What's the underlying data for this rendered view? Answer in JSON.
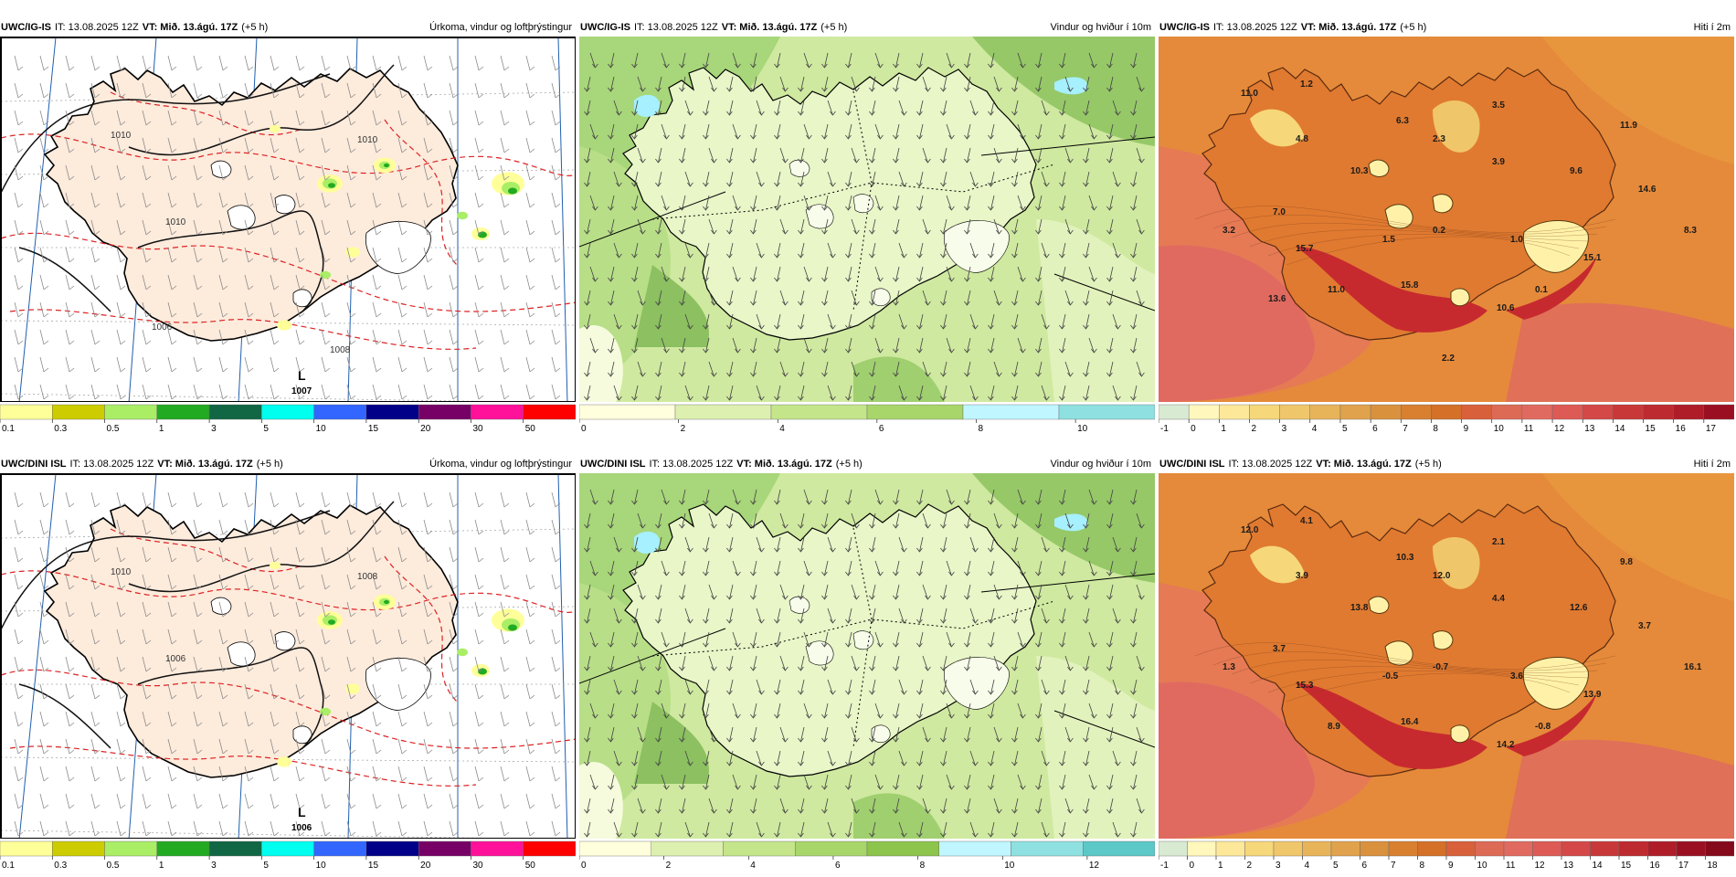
{
  "panels": [
    {
      "id": "p1",
      "model": "UWC/IG-IS",
      "it": "IT: 13.08.2025 12Z",
      "vt": "VT: Mið. 13.ágú. 17Z",
      "lead": "(+5 h)",
      "variable": "Úrkoma, vindur og loftþrýstingur",
      "kind": "precip",
      "pressure_labels": [
        "1010",
        "1010",
        "1010",
        "1008",
        "1006"
      ],
      "low": {
        "letter": "L",
        "value": "1007"
      },
      "temp_labels": [],
      "colorbar": {
        "ticks": [
          "0.1",
          "0.3",
          "0.5",
          "1",
          "3",
          "5",
          "10",
          "15",
          "20",
          "30",
          "50"
        ],
        "colors": [
          "#ffff99",
          "#cccc00",
          "#aaee66",
          "#22aa22",
          "#116644",
          "#00ffee",
          "#3366ff",
          "#000088",
          "#770066",
          "#ff1199",
          "#ff0000"
        ]
      }
    },
    {
      "id": "p2",
      "model": "UWC/IG-IS",
      "it": "IT: 13.08.2025 12Z",
      "vt": "VT: Mið. 13.ágú. 17Z",
      "lead": "(+5 h)",
      "variable": "Vindur og hviður í 10m",
      "kind": "wind",
      "temp_labels": [],
      "colorbar": {
        "ticks": [
          "0",
          "2",
          "4",
          "6",
          "8",
          "10"
        ],
        "colors": [
          "#ffffdd",
          "#ddf0b0",
          "#c4e58a",
          "#a8d66a",
          "#bff6ff",
          "#8fe0e0"
        ]
      }
    },
    {
      "id": "p3",
      "model": "UWC/IG-IS",
      "it": "IT: 13.08.2025 12Z",
      "vt": "VT: Mið. 13.ágú. 17Z",
      "lead": "(+5 h)",
      "variable": "Hiti í 2m",
      "kind": "temp",
      "temp_labels": [
        "11.0",
        "1.2",
        "4.8",
        "6.3",
        "2.3",
        "3.5",
        "3.9",
        "11.9",
        "10.3",
        "9.6",
        "14.6",
        "7.0",
        "3.2",
        "1.5",
        "0.2",
        "1.0",
        "8.3",
        "15.7",
        "15.1",
        "11.0",
        "15.8",
        "0.1",
        "10.6",
        "13.6",
        "2.2"
      ],
      "colorbar": {
        "ticks": [
          "-1",
          "0",
          "1",
          "2",
          "3",
          "4",
          "5",
          "6",
          "7",
          "8",
          "9",
          "10",
          "11",
          "12",
          "13",
          "14",
          "15",
          "16",
          "17"
        ],
        "colors": [
          "#d9ead3",
          "#fff7bc",
          "#fde89a",
          "#f6d77a",
          "#f0c66a",
          "#e8b45a",
          "#e0a24c",
          "#d9913e",
          "#d88030",
          "#d47028",
          "#d8603a",
          "#dd6a55",
          "#e06a60",
          "#dd5a55",
          "#d44848",
          "#c93838",
          "#bd2a30",
          "#ae1d28",
          "#9a1022"
        ]
      }
    },
    {
      "id": "p4",
      "model": "UWC/DINI ISL",
      "it": "IT: 13.08.2025 12Z",
      "vt": "VT: Mið. 13.ágú. 17Z",
      "lead": "(+5 h)",
      "variable": "Úrkoma, vindur og loftþrýstingur",
      "kind": "precip",
      "pressure_labels": [
        "1010",
        "1008",
        "1006"
      ],
      "low": {
        "letter": "L",
        "value": "1006"
      },
      "temp_labels": [],
      "colorbar": {
        "ticks": [
          "0.1",
          "0.3",
          "0.5",
          "1",
          "3",
          "5",
          "10",
          "15",
          "20",
          "30",
          "50"
        ],
        "colors": [
          "#ffff99",
          "#cccc00",
          "#aaee66",
          "#22aa22",
          "#116644",
          "#00ffee",
          "#3366ff",
          "#000088",
          "#770066",
          "#ff1199",
          "#ff0000"
        ]
      }
    },
    {
      "id": "p5",
      "model": "UWC/DINI ISL",
      "it": "IT: 13.08.2025 12Z",
      "vt": "VT: Mið. 13.ágú. 17Z",
      "lead": "(+5 h)",
      "variable": "Vindur og hviður í 10m",
      "kind": "wind",
      "temp_labels": [],
      "colorbar": {
        "ticks": [
          "0",
          "2",
          "4",
          "6",
          "8",
          "10",
          "12"
        ],
        "colors": [
          "#ffffdd",
          "#ddf0b0",
          "#c4e58a",
          "#a8d66a",
          "#8cc44c",
          "#bff6ff",
          "#8fe0e0",
          "#5cc8c8"
        ]
      }
    },
    {
      "id": "p6",
      "model": "UWC/DINI ISL",
      "it": "IT: 13.08.2025 12Z",
      "vt": "VT: Mið. 13.ágú. 17Z",
      "lead": "(+5 h)",
      "variable": "Hiti í 2m",
      "kind": "temp",
      "temp_labels": [
        "12.0",
        "4.1",
        "3.9",
        "10.3",
        "12.0",
        "2.1",
        "4.4",
        "9.8",
        "13.8",
        "12.6",
        "3.7",
        "3.7",
        "1.3",
        "-0.5",
        "-0.7",
        "3.6",
        "16.1",
        "15.3",
        "13.9",
        "8.9",
        "16.4",
        "-0.8",
        "14.2"
      ],
      "colorbar": {
        "ticks": [
          "-1",
          "0",
          "1",
          "2",
          "3",
          "4",
          "5",
          "6",
          "7",
          "8",
          "9",
          "10",
          "11",
          "12",
          "13",
          "14",
          "15",
          "16",
          "17",
          "18"
        ],
        "colors": [
          "#d9ead3",
          "#fff7bc",
          "#fde89a",
          "#f6d77a",
          "#f0c66a",
          "#e8b45a",
          "#e0a24c",
          "#d9913e",
          "#d88030",
          "#d47028",
          "#d8603a",
          "#dd6a55",
          "#e06a60",
          "#dd5a55",
          "#d44848",
          "#c93838",
          "#bd2a30",
          "#ae1d28",
          "#9a1022",
          "#850a1c"
        ]
      }
    }
  ]
}
